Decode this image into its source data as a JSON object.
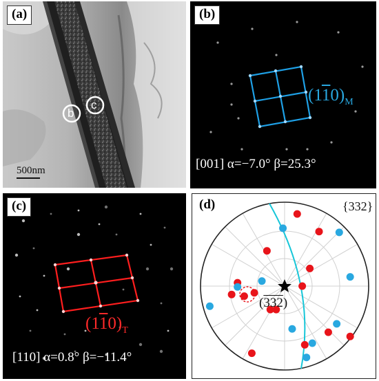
{
  "panels": {
    "a": {
      "tag": "(a)",
      "scale_bar": "500nm",
      "markers": [
        "b",
        "c"
      ]
    },
    "b": {
      "tag": "(b)",
      "plane_label": "(110)",
      "plane_bar": "1",
      "plane_sub": "M",
      "zone_axis": "[001] α=−7.0° β=25.3°"
    },
    "c": {
      "tag": "(c)",
      "plane_label": "(110)",
      "plane_bar": "1",
      "plane_sub": "T",
      "zone_axis": "[110]  α=0.8° β=−11.4°"
    },
    "d": {
      "tag": "(d)",
      "family": "{332}",
      "pole_label": "(332)",
      "pole_bar": "332"
    }
  },
  "colors": {
    "blue": "#29a8e0",
    "red": "#e8141a",
    "cyan": "#16c6d8"
  },
  "stereogram": {
    "red_poles": [
      [
        0.15,
        -0.86
      ],
      [
        0.41,
        -0.65
      ],
      [
        -0.21,
        -0.42
      ],
      [
        0.3,
        -0.21
      ],
      [
        0.21,
        0.0
      ],
      [
        -0.56,
        -0.04
      ],
      [
        -0.63,
        0.1
      ],
      [
        -0.48,
        0.12
      ],
      [
        -0.36,
        0.08
      ],
      [
        0.52,
        0.55
      ],
      [
        0.24,
        0.7
      ],
      [
        0.78,
        0.6
      ],
      [
        -0.39,
        0.8
      ],
      [
        -0.17,
        0.28
      ],
      [
        -0.1,
        0.28
      ]
    ],
    "blue_poles": [
      [
        -0.02,
        -0.69
      ],
      [
        0.65,
        -0.64
      ],
      [
        0.78,
        -0.11
      ],
      [
        -0.27,
        -0.06
      ],
      [
        -0.56,
        0.01
      ],
      [
        -0.89,
        0.24
      ],
      [
        0.09,
        0.51
      ],
      [
        0.62,
        0.45
      ],
      [
        0.33,
        0.68
      ],
      [
        0.26,
        0.85
      ]
    ]
  }
}
